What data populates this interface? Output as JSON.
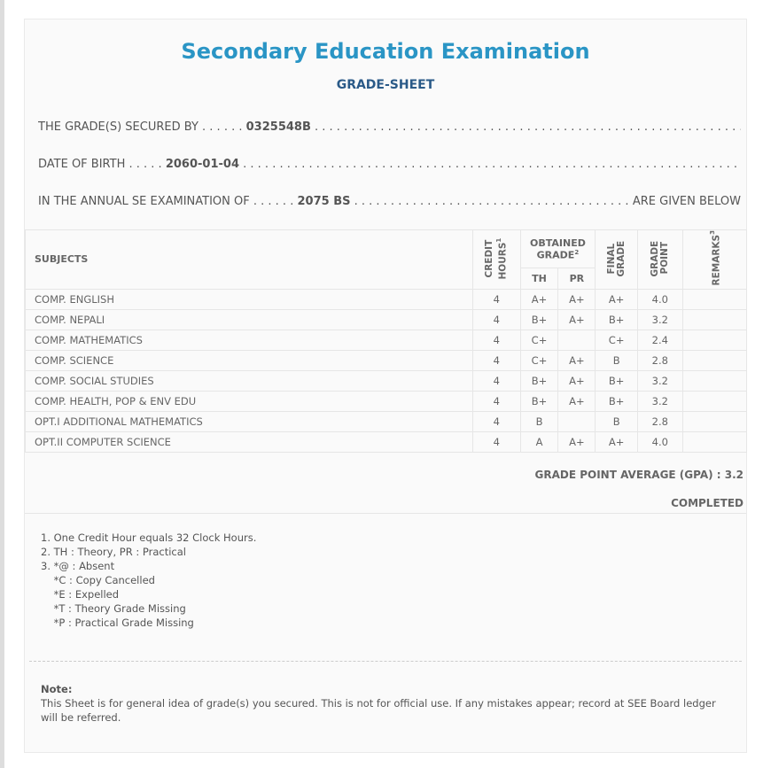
{
  "header": {
    "title": "Secondary Education Examination",
    "subtitle": "GRADE-SHEET"
  },
  "info": {
    "secured_by_label": "THE GRADE(S) SECURED BY",
    "symbol_no": "0325548B",
    "dob_label": "DATE OF BIRTH",
    "dob": "2060-01-04",
    "exam_label": "IN THE ANNUAL SE EXAMINATION OF",
    "exam_year": "2075 BS",
    "given_below": "ARE GIVEN BELOW"
  },
  "table": {
    "headers": {
      "subjects": "SUBJECTS",
      "credit": "CREDIT HOURS",
      "credit_sup": "1",
      "obtained": "OBTAINED GRADE",
      "obtained_sup": "2",
      "th": "TH",
      "pr": "PR",
      "final": "FINAL GRADE",
      "gp": "GRADE POINT",
      "remarks": "REMARKS",
      "remarks_sup": "3"
    },
    "rows": [
      {
        "subject": "COMP. ENGLISH",
        "credit": "4",
        "th": "A+",
        "pr": "A+",
        "final": "A+",
        "gp": "4.0",
        "remarks": ""
      },
      {
        "subject": "COMP. NEPALI",
        "credit": "4",
        "th": "B+",
        "pr": "A+",
        "final": "B+",
        "gp": "3.2",
        "remarks": ""
      },
      {
        "subject": "COMP. MATHEMATICS",
        "credit": "4",
        "th": "C+",
        "pr": "",
        "final": "C+",
        "gp": "2.4",
        "remarks": ""
      },
      {
        "subject": "COMP. SCIENCE",
        "credit": "4",
        "th": "C+",
        "pr": "A+",
        "final": "B",
        "gp": "2.8",
        "remarks": ""
      },
      {
        "subject": "COMP. SOCIAL STUDIES",
        "credit": "4",
        "th": "B+",
        "pr": "A+",
        "final": "B+",
        "gp": "3.2",
        "remarks": ""
      },
      {
        "subject": "COMP. HEALTH, POP & ENV EDU",
        "credit": "4",
        "th": "B+",
        "pr": "A+",
        "final": "B+",
        "gp": "3.2",
        "remarks": ""
      },
      {
        "subject": "OPT.I ADDITIONAL MATHEMATICS",
        "credit": "4",
        "th": "B",
        "pr": "",
        "final": "B",
        "gp": "2.8",
        "remarks": ""
      },
      {
        "subject": "OPT.II COMPUTER SCIENCE",
        "credit": "4",
        "th": "A",
        "pr": "A+",
        "final": "A+",
        "gp": "4.0",
        "remarks": ""
      }
    ]
  },
  "summary": {
    "gpa": "GRADE POINT AVERAGE (GPA) : 3.2",
    "status": "COMPLETED"
  },
  "footnotes": [
    "1. One Credit Hour equals 32 Clock Hours.",
    "2. TH : Theory, PR : Practical",
    "3. *@ : Absent",
    "    *C : Copy Cancelled",
    "    *E : Expelled",
    "    *T : Theory Grade Missing",
    "    *P : Practical Grade Missing"
  ],
  "note": {
    "label": "Note:",
    "text": "This Sheet is for general idea of grade(s) you secured. This is not for official use. If any mistakes appear; record at SEE Board ledger will be referred."
  }
}
